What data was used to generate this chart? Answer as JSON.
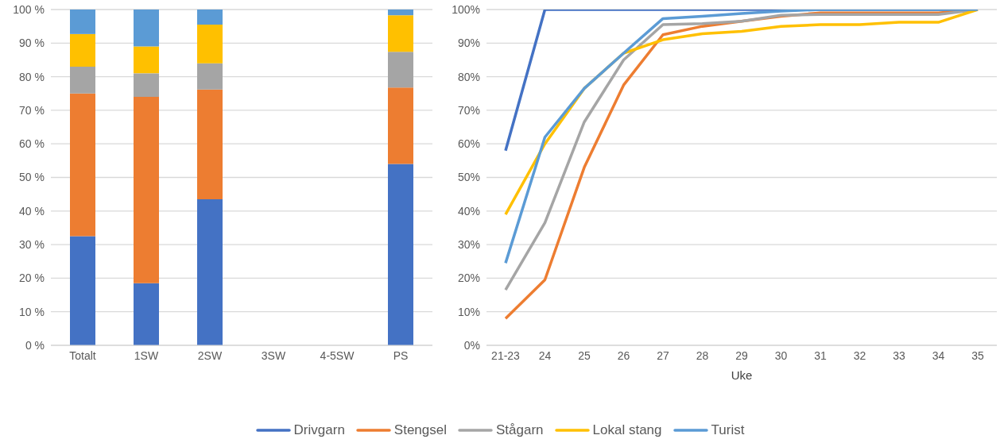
{
  "chart_data": [
    {
      "type": "bar",
      "stacked": true,
      "categories": [
        "Totalt",
        "1SW",
        "2SW",
        "3SW",
        "4-5SW",
        "PS"
      ],
      "ylim": [
        0,
        100
      ],
      "yticks": [
        {
          "value": 0,
          "label": "0 %"
        },
        {
          "value": 10,
          "label": "10 %"
        },
        {
          "value": 20,
          "label": "20 %"
        },
        {
          "value": 30,
          "label": "30 %"
        },
        {
          "value": 40,
          "label": "40 %"
        },
        {
          "value": 50,
          "label": "50 %"
        },
        {
          "value": 60,
          "label": "60 %"
        },
        {
          "value": 70,
          "label": "70 %"
        },
        {
          "value": 80,
          "label": "80 %"
        },
        {
          "value": 90,
          "label": "90 %"
        },
        {
          "value": 100,
          "label": "100 %"
        }
      ],
      "grid": "y",
      "series": [
        {
          "color": "#4472c4",
          "values": [
            32.5,
            18.5,
            43.5,
            null,
            null,
            54
          ]
        },
        {
          "color": "#ed7d31",
          "values": [
            42.5,
            55.5,
            32.7,
            null,
            null,
            22.8
          ]
        },
        {
          "color": "#a5a5a5",
          "values": [
            8,
            7,
            7.8,
            null,
            null,
            10.6
          ]
        },
        {
          "color": "#ffc000",
          "values": [
            9.7,
            8,
            11.5,
            null,
            null,
            10.9
          ]
        },
        {
          "color": "#5b9bd5",
          "values": [
            7.3,
            11,
            4.5,
            null,
            null,
            1.7
          ]
        }
      ]
    },
    {
      "type": "line",
      "xlabel": "Uke",
      "categories": [
        "21-23",
        "24",
        "25",
        "26",
        "27",
        "28",
        "29",
        "30",
        "31",
        "32",
        "33",
        "34",
        "35"
      ],
      "ylim": [
        0,
        100
      ],
      "yticks": [
        {
          "value": 0,
          "label": "0%"
        },
        {
          "value": 10,
          "label": "10%"
        },
        {
          "value": 20,
          "label": "20%"
        },
        {
          "value": 30,
          "label": "30%"
        },
        {
          "value": 40,
          "label": "40%"
        },
        {
          "value": 50,
          "label": "50%"
        },
        {
          "value": 60,
          "label": "60%"
        },
        {
          "value": 70,
          "label": "70%"
        },
        {
          "value": 80,
          "label": "80%"
        },
        {
          "value": 90,
          "label": "90%"
        },
        {
          "value": 100,
          "label": "100%"
        }
      ],
      "grid": "y",
      "legend": "bottom",
      "marker": "none",
      "series": [
        {
          "name": "Drivgarn",
          "color": "#4472c4",
          "values": [
            58,
            100,
            100,
            100,
            100,
            100,
            100,
            100,
            100,
            100,
            100,
            100,
            100
          ]
        },
        {
          "name": "Stengsel",
          "color": "#ed7d31",
          "values": [
            8,
            19.5,
            53,
            77.5,
            92.5,
            95,
            96.5,
            98,
            99,
            99,
            99,
            99,
            100
          ]
        },
        {
          "name": "Stågarn",
          "color": "#a5a5a5",
          "values": [
            16.5,
            36.5,
            66.5,
            85,
            95.5,
            95.8,
            96.5,
            98.3,
            98.5,
            98.5,
            98.5,
            98.5,
            100
          ]
        },
        {
          "name": "Lokal stang",
          "color": "#ffc000",
          "values": [
            39,
            60,
            76.5,
            87,
            91,
            92.8,
            93.5,
            95,
            95.5,
            95.5,
            96.2,
            96.2,
            100
          ]
        },
        {
          "name": "Turist",
          "color": "#5b9bd5",
          "values": [
            24.5,
            62,
            76.5,
            87,
            97.3,
            98,
            98.8,
            99.5,
            100,
            100,
            100,
            100,
            100
          ]
        }
      ]
    }
  ]
}
